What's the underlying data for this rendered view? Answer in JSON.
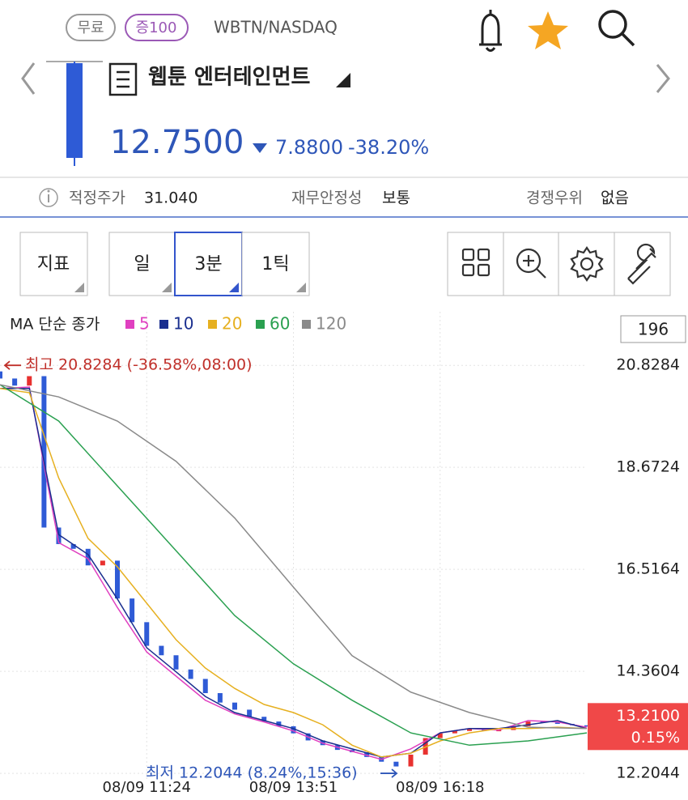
{
  "header": {
    "free_badge": "무료",
    "points_badge": "증100",
    "ticker": "WBTN/NASDAQ",
    "name": "웹툰 엔터테인먼트",
    "price": "12.7500",
    "change": "7.8800",
    "change_pct": "-38.20%"
  },
  "info": {
    "fair_price_label": "적정주가",
    "fair_price": "31.040",
    "stability_label": "재무안정성",
    "stability": "보통",
    "moat_label": "경쟁우위",
    "moat": "없음"
  },
  "toolbar": {
    "indicator": "지표",
    "periods": [
      "일",
      "3분",
      "1틱"
    ],
    "candle_count": 196
  },
  "chart_data": {
    "type": "candlestick",
    "legend_title": "MA 단순 종가",
    "xlim": [
      0,
      100
    ],
    "xticks": [
      {
        "value": 25,
        "label": "08/09 11:24"
      },
      {
        "value": 50,
        "label": "08/09 13:51"
      },
      {
        "value": 75,
        "label": "08/09 16:18"
      }
    ],
    "ylim": [
      12.12,
      21.02
    ],
    "yticks": [
      20.8284,
      18.6724,
      16.5164,
      14.3604,
      12.2044
    ],
    "grid": true,
    "up_color": "#e8312f",
    "down_color": "#2f5bd6",
    "candles": {
      "x": [
        0,
        2.5,
        5,
        7.5,
        10,
        12.5,
        15,
        17.5,
        20,
        22.5,
        25,
        27.5,
        30,
        32.5,
        35,
        37.5,
        40,
        42.5,
        45,
        47.5,
        50,
        52.5,
        55,
        57.5,
        60,
        62.5,
        65,
        67.5,
        70,
        72.5,
        75,
        77.5,
        80,
        82.5,
        85,
        87.5,
        90,
        92.5,
        95,
        97.5,
        100
      ],
      "open": [
        20.7,
        20.55,
        20.4,
        20.6,
        17.4,
        17.05,
        16.95,
        16.6,
        16.7,
        15.9,
        15.4,
        14.9,
        14.7,
        14.4,
        14.2,
        13.9,
        13.7,
        13.55,
        13.4,
        13.3,
        13.2,
        13.05,
        12.9,
        12.8,
        12.7,
        12.65,
        12.55,
        12.45,
        12.35,
        12.6,
        12.95,
        13.05,
        13.1,
        13.15,
        13.1,
        13.12,
        13.2,
        13.3,
        13.28,
        13.25,
        13.22
      ],
      "close": [
        20.55,
        20.4,
        20.6,
        17.4,
        17.05,
        16.95,
        16.6,
        16.7,
        15.9,
        15.4,
        14.9,
        14.7,
        14.4,
        14.2,
        13.9,
        13.7,
        13.55,
        13.4,
        13.3,
        13.2,
        13.05,
        12.9,
        12.8,
        12.7,
        12.65,
        12.55,
        12.45,
        12.35,
        12.6,
        12.95,
        13.05,
        13.1,
        13.15,
        13.1,
        13.12,
        13.2,
        13.3,
        13.28,
        13.25,
        13.22,
        13.21
      ]
    },
    "series": [
      {
        "name": "5",
        "color": "#e040c0",
        "x": [
          0,
          5,
          10,
          15,
          20,
          25,
          30,
          35,
          40,
          45,
          50,
          55,
          60,
          65,
          70,
          75,
          80,
          85,
          90,
          95,
          100
        ],
        "values": [
          20.34,
          20.37,
          17.08,
          16.74,
          15.71,
          14.77,
          14.26,
          13.75,
          13.46,
          13.29,
          13.1,
          12.84,
          12.67,
          12.5,
          12.72,
          13.06,
          13.15,
          13.12,
          13.32,
          13.29,
          13.18
        ]
      },
      {
        "name": "10",
        "color": "#1a2f8f",
        "x": [
          0,
          5,
          10,
          15,
          20,
          25,
          30,
          35,
          40,
          45,
          50,
          55,
          60,
          65,
          70,
          75,
          80,
          85,
          90,
          95,
          100
        ],
        "values": [
          20.34,
          20.34,
          17.25,
          16.83,
          15.89,
          14.86,
          14.35,
          13.83,
          13.49,
          13.32,
          13.15,
          12.89,
          12.72,
          12.55,
          12.63,
          13.06,
          13.15,
          13.15,
          13.23,
          13.32,
          13.15
        ]
      },
      {
        "name": "20",
        "color": "#e6b020",
        "x": [
          0,
          5,
          10,
          15,
          20,
          25,
          30,
          35,
          40,
          45,
          50,
          55,
          60,
          65,
          70,
          75,
          80,
          85,
          90,
          95,
          100
        ],
        "values": [
          20.34,
          20.25,
          18.45,
          17.17,
          16.57,
          15.8,
          15.03,
          14.43,
          14.0,
          13.66,
          13.49,
          13.23,
          12.8,
          12.55,
          12.63,
          12.89,
          13.06,
          13.15,
          13.15,
          13.18,
          13.15
        ]
      },
      {
        "name": "60",
        "color": "#2aa050",
        "x": [
          0,
          10,
          20,
          30,
          40,
          50,
          60,
          70,
          80,
          90,
          100
        ],
        "values": [
          20.42,
          19.65,
          18.28,
          16.91,
          15.54,
          14.52,
          13.75,
          13.06,
          12.8,
          12.89,
          13.06
        ]
      },
      {
        "name": "120",
        "color": "#8a8a8a",
        "x": [
          0,
          10,
          20,
          30,
          40,
          50,
          60,
          70,
          80,
          90,
          100
        ],
        "values": [
          20.42,
          20.16,
          19.65,
          18.8,
          17.6,
          16.14,
          14.69,
          13.92,
          13.49,
          13.18,
          13.15
        ]
      }
    ],
    "high_label": "최고 20.8284 (-36.58%,08:00)",
    "low_label": "최저 12.2044 (8.24%,15:36)",
    "current": {
      "value": 13.21,
      "label": "13.2100",
      "change": "0.15%"
    }
  }
}
